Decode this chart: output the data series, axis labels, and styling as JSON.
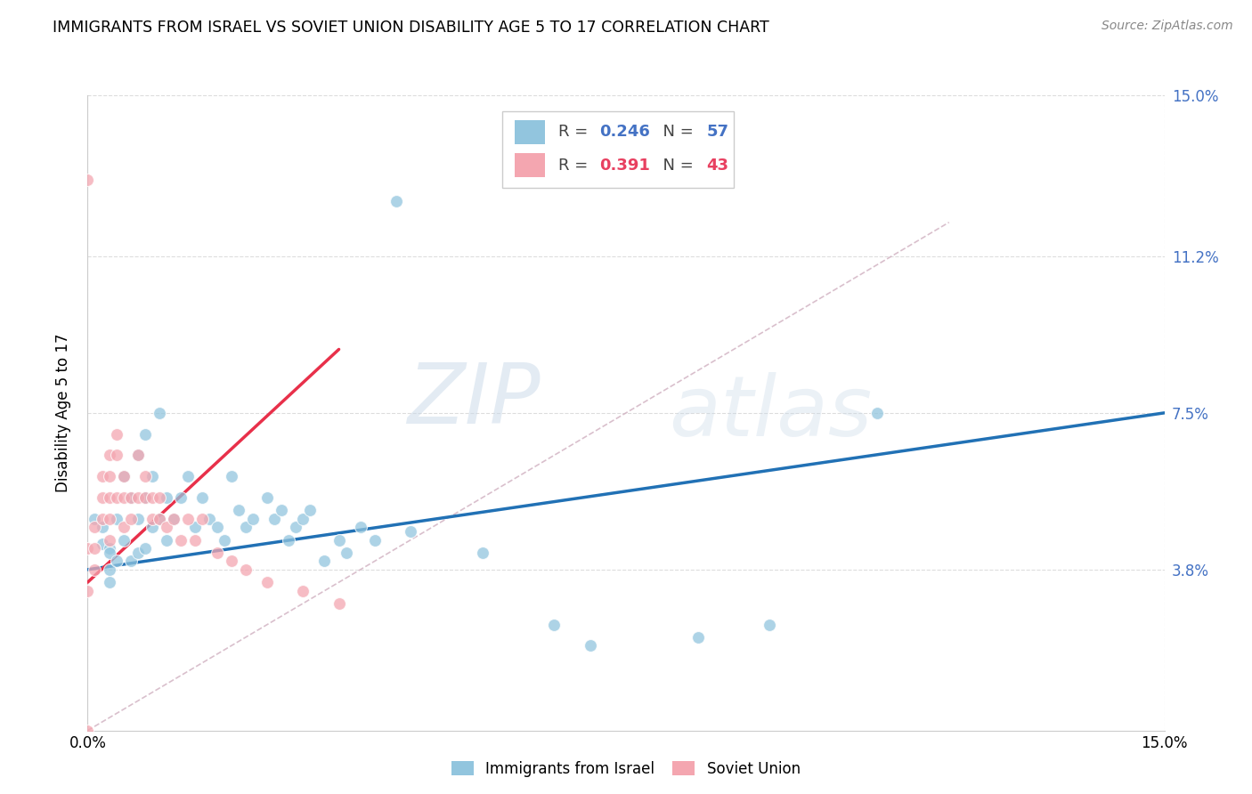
{
  "title": "IMMIGRANTS FROM ISRAEL VS SOVIET UNION DISABILITY AGE 5 TO 17 CORRELATION CHART",
  "source": "Source: ZipAtlas.com",
  "ylabel": "Disability Age 5 to 17",
  "xlim": [
    0.0,
    0.15
  ],
  "ylim": [
    0.0,
    0.15
  ],
  "ytick_labels": [
    "3.8%",
    "7.5%",
    "11.2%",
    "15.0%"
  ],
  "ytick_positions": [
    0.038,
    0.075,
    0.112,
    0.15
  ],
  "watermark_zip": "ZIP",
  "watermark_atlas": "atlas",
  "legend_israel_r": "0.246",
  "legend_israel_n": "57",
  "legend_soviet_r": "0.391",
  "legend_soviet_n": "43",
  "israel_color": "#92c5de",
  "soviet_color": "#f4a6b0",
  "israel_line_color": "#2171b5",
  "soviet_line_color": "#e8304a",
  "diagonal_color": "#d0b0c0",
  "r_value_color_israel": "#4472c4",
  "r_value_color_soviet": "#e84060",
  "n_value_color_israel": "#e05010",
  "n_value_color_soviet": "#e05010",
  "israel_scatter_x": [
    0.001,
    0.002,
    0.002,
    0.003,
    0.003,
    0.003,
    0.003,
    0.004,
    0.004,
    0.005,
    0.005,
    0.006,
    0.006,
    0.007,
    0.007,
    0.007,
    0.008,
    0.008,
    0.008,
    0.009,
    0.009,
    0.01,
    0.01,
    0.011,
    0.011,
    0.012,
    0.013,
    0.014,
    0.015,
    0.016,
    0.017,
    0.018,
    0.019,
    0.02,
    0.021,
    0.022,
    0.023,
    0.025,
    0.026,
    0.027,
    0.028,
    0.029,
    0.03,
    0.031,
    0.033,
    0.035,
    0.036,
    0.038,
    0.04,
    0.043,
    0.045,
    0.055,
    0.065,
    0.07,
    0.085,
    0.095,
    0.11
  ],
  "israel_scatter_y": [
    0.05,
    0.048,
    0.044,
    0.043,
    0.042,
    0.038,
    0.035,
    0.05,
    0.04,
    0.06,
    0.045,
    0.055,
    0.04,
    0.065,
    0.05,
    0.042,
    0.07,
    0.055,
    0.043,
    0.06,
    0.048,
    0.075,
    0.05,
    0.055,
    0.045,
    0.05,
    0.055,
    0.06,
    0.048,
    0.055,
    0.05,
    0.048,
    0.045,
    0.06,
    0.052,
    0.048,
    0.05,
    0.055,
    0.05,
    0.052,
    0.045,
    0.048,
    0.05,
    0.052,
    0.04,
    0.045,
    0.042,
    0.048,
    0.045,
    0.125,
    0.047,
    0.042,
    0.025,
    0.02,
    0.022,
    0.025,
    0.075
  ],
  "soviet_scatter_x": [
    0.0,
    0.0,
    0.0,
    0.0,
    0.001,
    0.001,
    0.001,
    0.002,
    0.002,
    0.002,
    0.003,
    0.003,
    0.003,
    0.003,
    0.003,
    0.004,
    0.004,
    0.004,
    0.005,
    0.005,
    0.005,
    0.006,
    0.006,
    0.007,
    0.007,
    0.008,
    0.008,
    0.009,
    0.009,
    0.01,
    0.01,
    0.011,
    0.012,
    0.013,
    0.014,
    0.015,
    0.016,
    0.018,
    0.02,
    0.022,
    0.025,
    0.03,
    0.035
  ],
  "soviet_scatter_y": [
    0.0,
    0.033,
    0.043,
    0.13,
    0.048,
    0.043,
    0.038,
    0.06,
    0.055,
    0.05,
    0.065,
    0.06,
    0.055,
    0.05,
    0.045,
    0.07,
    0.065,
    0.055,
    0.06,
    0.055,
    0.048,
    0.055,
    0.05,
    0.065,
    0.055,
    0.06,
    0.055,
    0.055,
    0.05,
    0.055,
    0.05,
    0.048,
    0.05,
    0.045,
    0.05,
    0.045,
    0.05,
    0.042,
    0.04,
    0.038,
    0.035,
    0.033,
    0.03
  ],
  "israel_trendline_x": [
    0.0,
    0.15
  ],
  "israel_trendline_y": [
    0.038,
    0.075
  ],
  "soviet_trendline_x": [
    0.0,
    0.035
  ],
  "soviet_trendline_y": [
    0.035,
    0.09
  ]
}
